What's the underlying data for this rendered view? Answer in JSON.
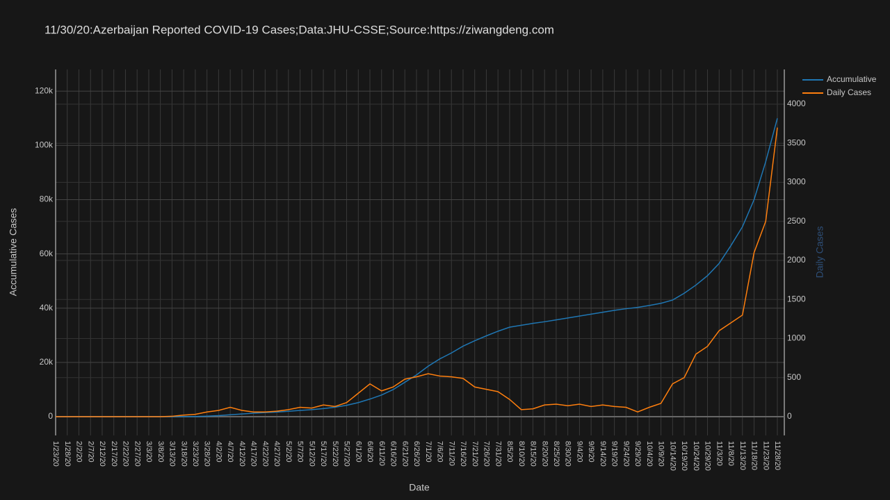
{
  "chart_data": {
    "type": "line",
    "title": "11/30/20:Azerbaijan Reported COVID-19 Cases;Data:JHU-CSSE;Source:https://ziwangdeng.com",
    "x_label": "Date",
    "y_label": "Accumulative Cases",
    "y2_label": "Daily Cases",
    "categories": [
      "1/23/20",
      "1/28/20",
      "2/2/20",
      "2/7/20",
      "2/12/20",
      "2/17/20",
      "2/22/20",
      "2/27/20",
      "3/3/20",
      "3/8/20",
      "3/13/20",
      "3/18/20",
      "3/23/20",
      "3/28/20",
      "4/2/20",
      "4/7/20",
      "4/12/20",
      "4/17/20",
      "4/22/20",
      "4/27/20",
      "5/2/20",
      "5/7/20",
      "5/12/20",
      "5/17/20",
      "5/22/20",
      "5/27/20",
      "6/1/20",
      "6/6/20",
      "6/11/20",
      "6/16/20",
      "6/21/20",
      "6/26/20",
      "7/1/20",
      "7/6/20",
      "7/11/20",
      "7/16/20",
      "7/21/20",
      "7/26/20",
      "7/31/20",
      "8/5/20",
      "8/10/20",
      "8/15/20",
      "8/20/20",
      "8/25/20",
      "8/30/20",
      "9/4/20",
      "9/9/20",
      "9/14/20",
      "9/19/20",
      "9/24/20",
      "9/29/20",
      "10/4/20",
      "10/9/20",
      "10/14/20",
      "10/19/20",
      "10/24/20",
      "10/29/20",
      "11/3/20",
      "11/8/20",
      "11/13/20",
      "11/18/20",
      "11/23/20",
      "11/28/20"
    ],
    "series": [
      {
        "name": "Accumulative",
        "color": "#1f77b4",
        "values": [
          0,
          0,
          0,
          0,
          0,
          0,
          0,
          0,
          0,
          0,
          15,
          30,
          70,
          200,
          400,
          700,
          1000,
          1300,
          1500,
          1700,
          2000,
          2300,
          2600,
          3000,
          3500,
          4200,
          5200,
          6500,
          8000,
          10000,
          12700,
          15400,
          18600,
          21300,
          23500,
          26000,
          28000,
          29800,
          31500,
          33000,
          33700,
          34400,
          35000,
          35700,
          36400,
          37100,
          37800,
          38500,
          39200,
          39800,
          40300,
          41000,
          41800,
          43000,
          45500,
          48500,
          52000,
          56500,
          63000,
          70000,
          80000,
          94000,
          110000
        ]
      },
      {
        "name": "Daily Cases",
        "color": "#ff7f0e",
        "axis": "y2",
        "values": [
          0,
          0,
          0,
          0,
          0,
          0,
          0,
          0,
          0,
          0,
          5,
          20,
          30,
          60,
          80,
          120,
          80,
          60,
          60,
          70,
          90,
          120,
          110,
          150,
          130,
          180,
          300,
          420,
          330,
          380,
          480,
          510,
          550,
          520,
          510,
          490,
          380,
          350,
          320,
          220,
          90,
          100,
          150,
          160,
          140,
          160,
          130,
          150,
          130,
          120,
          60,
          120,
          170,
          420,
          500,
          800,
          900,
          1100,
          1200,
          1300,
          2100,
          2500,
          3700
        ]
      }
    ],
    "ylim": [
      -6900,
      128000
    ],
    "yticks": [
      0,
      {
        "value": 20000,
        "label": "20k"
      },
      {
        "value": 40000,
        "label": "40k"
      },
      {
        "value": 60000,
        "label": "60k"
      },
      {
        "value": 80000,
        "label": "80k"
      },
      {
        "value": 100000,
        "label": "100k"
      },
      {
        "value": 120000,
        "label": "120k"
      }
    ],
    "y2lim": [
      -240,
      4444
    ],
    "y2ticks": [
      0,
      500,
      1000,
      1500,
      2000,
      2500,
      3000,
      3500,
      4000
    ],
    "grid": true,
    "legend": "top-right"
  }
}
